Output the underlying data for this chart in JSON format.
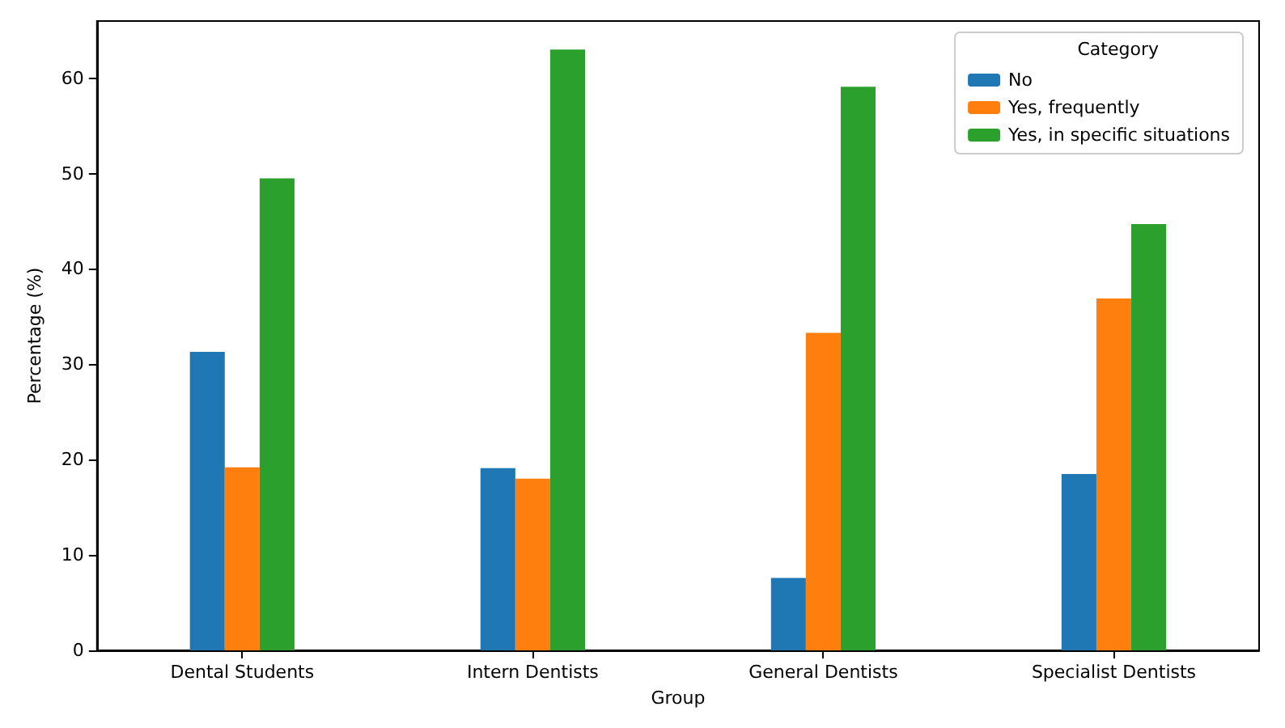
{
  "chart_data": {
    "type": "bar",
    "xlabel": "Group",
    "ylabel": "Percentage (%)",
    "legend_title": "Category",
    "legend": "top right",
    "grid": false,
    "categories": [
      "Dental Students",
      "Intern Dentists",
      "General Dentists",
      "Specialist Dentists"
    ],
    "series": [
      {
        "name": "No",
        "color": "#1f77b4",
        "values": [
          31.3,
          19.1,
          7.6,
          18.5
        ]
      },
      {
        "name": "Yes, frequently",
        "color": "#ff7f0e",
        "values": [
          19.2,
          18.0,
          33.3,
          36.9
        ]
      },
      {
        "name": "Yes, in specific situations",
        "color": "#2ca02c",
        "values": [
          49.5,
          63.0,
          59.1,
          44.7
        ]
      }
    ],
    "ylim": [
      0,
      66
    ],
    "yticks": [
      0,
      10,
      20,
      30,
      40,
      50,
      60
    ]
  }
}
